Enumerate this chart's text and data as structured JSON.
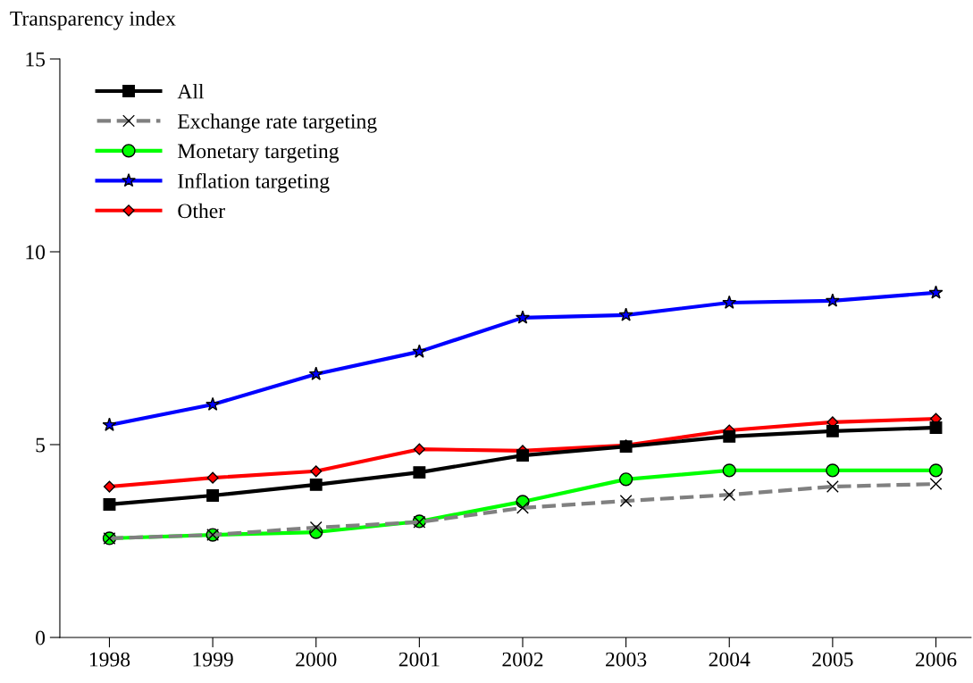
{
  "chart_data": {
    "type": "line",
    "ylabel": "Transparency index",
    "x": [
      1998,
      1999,
      2000,
      2001,
      2002,
      2003,
      2004,
      2005,
      2006
    ],
    "xlim": [
      1997.52,
      2006.34
    ],
    "xticks": [
      1998,
      1999,
      2000,
      2001,
      2002,
      2003,
      2004,
      2005,
      2006
    ],
    "ylim": [
      0,
      15
    ],
    "yticks": [
      0,
      5,
      10,
      15
    ],
    "grid": false,
    "legend": "top left",
    "series": [
      {
        "name": "All",
        "color": "#000000",
        "marker": "square",
        "line_style": "solid",
        "values": [
          3.45,
          3.68,
          3.96,
          4.28,
          4.72,
          4.95,
          5.21,
          5.35,
          5.44
        ]
      },
      {
        "name": "Exchange rate targeting",
        "color": "#808080",
        "marker": "cross",
        "line_style": "dashed",
        "values": [
          2.57,
          2.66,
          2.85,
          2.99,
          3.36,
          3.54,
          3.7,
          3.91,
          3.98
        ]
      },
      {
        "name": "Monetary targeting",
        "color": "#00ff00",
        "marker": "circle",
        "line_style": "solid",
        "values": [
          2.57,
          2.66,
          2.73,
          3.01,
          3.52,
          4.1,
          4.33,
          4.33,
          4.33
        ]
      },
      {
        "name": "Inflation targeting",
        "color": "#0000ff",
        "marker": "star",
        "line_style": "solid",
        "values": [
          5.51,
          6.04,
          6.83,
          7.41,
          8.29,
          8.36,
          8.68,
          8.73,
          8.94
        ]
      },
      {
        "name": "Other",
        "color": "#ff0000",
        "marker": "diamond",
        "line_style": "solid",
        "values": [
          3.91,
          4.14,
          4.31,
          4.88,
          4.84,
          4.98,
          5.37,
          5.58,
          5.67
        ]
      }
    ]
  }
}
